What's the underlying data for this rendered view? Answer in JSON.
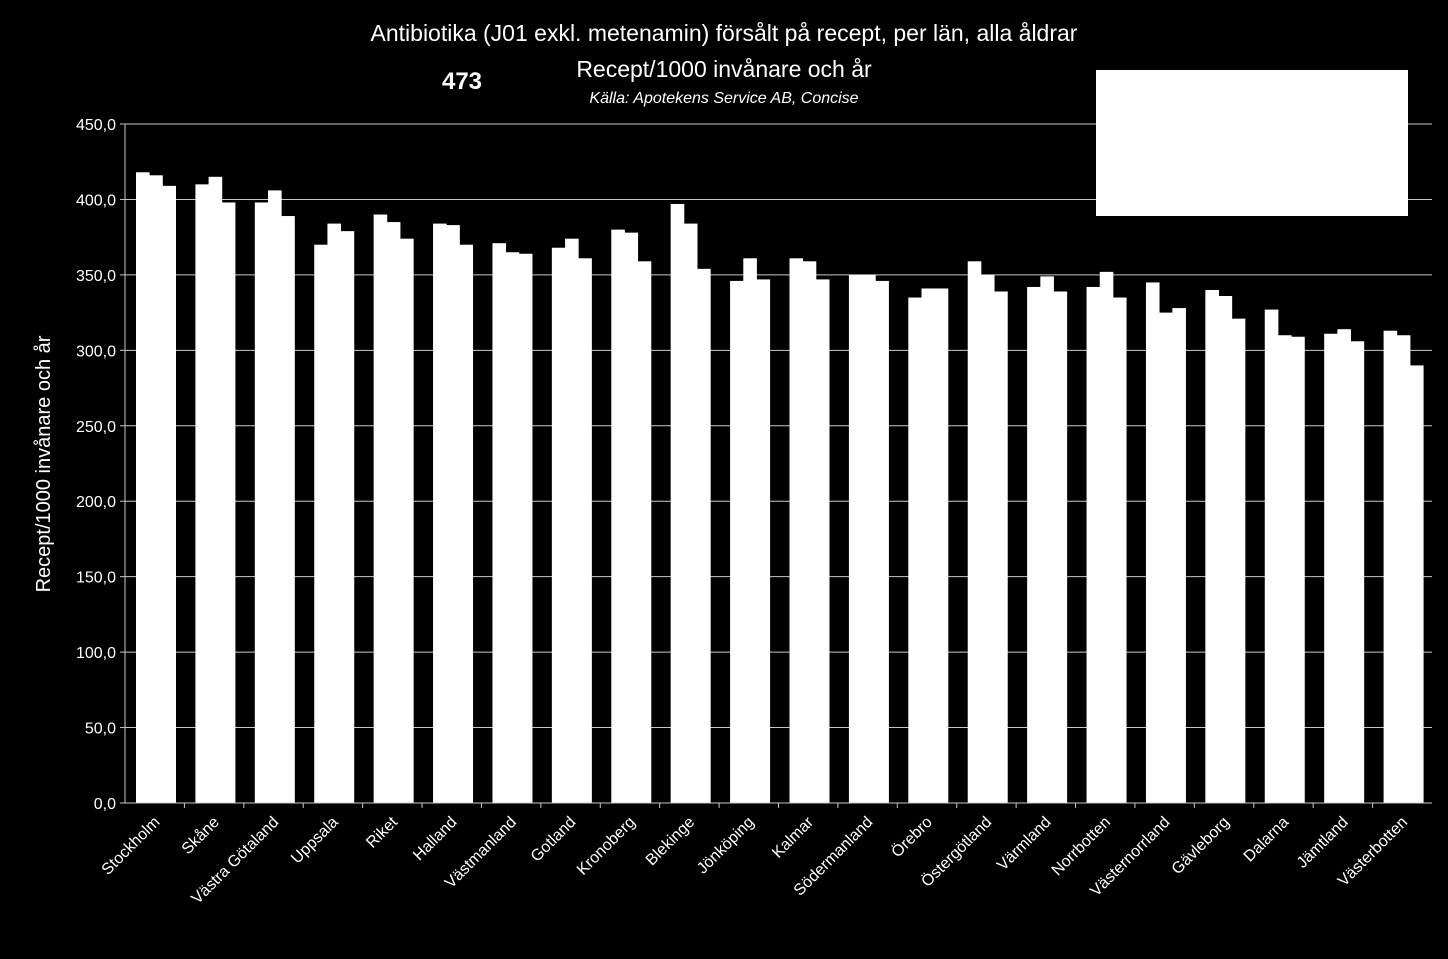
{
  "chart_data": {
    "type": "bar",
    "title": "Antibiotika (J01 exkl. metenamin) försålt på recept, per län, alla åldrar",
    "subtitle": "Recept/1000 invånare och år",
    "source": "Källa: Apotekens Service AB, Concise",
    "annotation": "473",
    "ylabel": "Recept/1000 invånare och år",
    "xlabel": "",
    "ylim": [
      0,
      450
    ],
    "ytick_labels": [
      "0,0",
      "50,0",
      "100,0",
      "150,0",
      "200,0",
      "250,0",
      "300,0",
      "350,0",
      "400,0",
      "450,0"
    ],
    "grid": true,
    "legend": "top-right",
    "bar_color": "#ffffff",
    "background": "#000000",
    "categories": [
      "Stockholm",
      "Skåne",
      "Västra Götaland",
      "Uppsala",
      "Riket",
      "Halland",
      "Västmanland",
      "Gotland",
      "Kronoberg",
      "Blekinge",
      "Jönköping",
      "Kalmar",
      "Södermanland",
      "Örebro",
      "Östergötland",
      "Värmland",
      "Norrbotten",
      "Västernorrland",
      "Gävleborg",
      "Dalarna",
      "Jämtland",
      "Västerbotten"
    ],
    "series": [
      {
        "values": [
          418,
          410,
          398,
          370,
          390,
          384,
          371,
          368,
          380,
          397,
          346,
          361,
          350,
          335,
          359,
          342,
          342,
          345,
          340,
          327,
          311,
          313
        ]
      },
      {
        "values": [
          416,
          415,
          406,
          384,
          385,
          383,
          365,
          374,
          378,
          384,
          361,
          359,
          350,
          341,
          350,
          349,
          352,
          325,
          336,
          310,
          314,
          310
        ]
      },
      {
        "values": [
          409,
          398,
          389,
          379,
          374,
          370,
          364,
          361,
          359,
          354,
          347,
          347,
          346,
          341,
          339,
          339,
          335,
          328,
          321,
          309,
          306,
          290
        ]
      }
    ]
  }
}
